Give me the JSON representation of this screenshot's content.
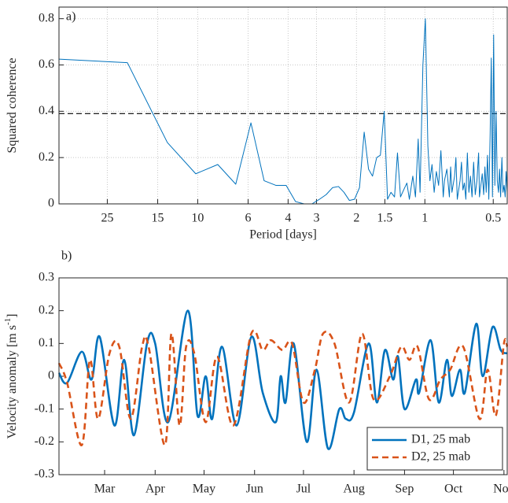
{
  "chart_data": [
    {
      "type": "line",
      "title": "a)",
      "xlabel": "Period [days]",
      "ylabel": "Squared coherence",
      "xscale": "log",
      "grid": true,
      "xlim": [
        40.8,
        0.434
      ],
      "xticks": [
        25,
        15,
        10,
        6,
        4,
        3,
        2,
        1.5,
        1,
        0.5
      ],
      "ylim": [
        0,
        0.85
      ],
      "yticks": [
        0,
        0.2,
        0.4,
        0.6,
        0.8
      ],
      "hline": 0.39,
      "x": [
        40.8,
        20.4,
        13.6,
        10.2,
        8.16,
        6.8,
        5.83,
        5.1,
        4.53,
        4.08,
        3.71,
        3.4,
        3.14,
        2.91,
        2.72,
        2.55,
        2.4,
        2.27,
        2.15,
        2.04,
        1.94,
        1.85,
        1.77,
        1.7,
        1.63,
        1.57,
        1.51,
        1.46,
        1.41,
        1.36,
        1.32,
        1.28,
        1.24,
        1.2,
        1.17,
        1.13,
        1.1,
        1.07,
        1.05,
        1.02,
        0.995,
        0.97,
        0.95,
        0.93,
        0.91,
        0.89,
        0.87,
        0.85,
        0.83,
        0.82,
        0.8,
        0.78,
        0.77,
        0.76,
        0.74,
        0.73,
        0.72,
        0.7,
        0.69,
        0.68,
        0.67,
        0.66,
        0.65,
        0.64,
        0.63,
        0.62,
        0.61,
        0.6,
        0.59,
        0.58,
        0.575,
        0.567,
        0.559,
        0.551,
        0.544,
        0.537,
        0.53,
        0.523,
        0.516,
        0.51,
        0.504,
        0.498,
        0.492,
        0.486,
        0.48,
        0.474,
        0.469,
        0.464,
        0.458,
        0.453,
        0.448,
        0.443,
        0.439,
        0.434
      ],
      "series": [
        {
          "color": "#0072bd",
          "linestyle": "solid",
          "values": [
            0.625,
            0.61,
            0.265,
            0.13,
            0.17,
            0.085,
            0.35,
            0.1,
            0.08,
            0.08,
            0.01,
            0.0,
            0.0,
            0.02,
            0.04,
            0.07,
            0.075,
            0.05,
            0.015,
            0.02,
            0.07,
            0.31,
            0.15,
            0.12,
            0.2,
            0.21,
            0.4,
            0.02,
            0.05,
            0.03,
            0.22,
            0.03,
            0.06,
            0.09,
            0.02,
            0.12,
            0.03,
            0.28,
            0.05,
            0.6,
            0.8,
            0.25,
            0.1,
            0.17,
            0.05,
            0.14,
            0.08,
            0.23,
            0.03,
            0.1,
            0.15,
            0.03,
            0.16,
            0.05,
            0.12,
            0.2,
            0.02,
            0.1,
            0.18,
            0.06,
            0.09,
            0.02,
            0.22,
            0.05,
            0.12,
            0.03,
            0.18,
            0.04,
            0.1,
            0.22,
            0.03,
            0.08,
            0.13,
            0.04,
            0.16,
            0.05,
            0.21,
            0.02,
            0.3,
            0.63,
            0.03,
            0.73,
            0.08,
            0.4,
            0.1,
            0.05,
            0.15,
            0.03,
            0.2,
            0.05,
            0.08,
            0.03,
            0.14,
            0.05
          ]
        }
      ]
    },
    {
      "type": "line",
      "title": "b)",
      "ylabel": "Velocity anomaly [m s",
      "ylabel_sup": "-1",
      "ylabel_end": "]",
      "grid": false,
      "smooth": true,
      "legend": "lower right",
      "xlim": [
        32,
        307
      ],
      "xticks": [
        {
          "value": 60,
          "label": "Mar"
        },
        {
          "value": 91,
          "label": "Apr"
        },
        {
          "value": 121,
          "label": "May"
        },
        {
          "value": 152,
          "label": "Jun"
        },
        {
          "value": 182,
          "label": "Jul"
        },
        {
          "value": 213,
          "label": "Aug"
        },
        {
          "value": 244,
          "label": "Sep"
        },
        {
          "value": 274,
          "label": "Oct"
        },
        {
          "value": 305,
          "label": "Nov"
        }
      ],
      "ylim": [
        -0.3,
        0.3
      ],
      "yticks": [
        -0.3,
        -0.2,
        -0.1,
        0,
        0.1,
        0.2,
        0.3
      ],
      "series": [
        {
          "name": "D1, 25 mab",
          "color": "#0072bd",
          "linestyle": "solid",
          "x": [
            32,
            37,
            46,
            52,
            57,
            66,
            72,
            78,
            86,
            91,
            99,
            111,
            117,
            122,
            126,
            132,
            141,
            150,
            157,
            165,
            168,
            171,
            176,
            184,
            190,
            197,
            204,
            208,
            213,
            222,
            227,
            232,
            237,
            240,
            244,
            251,
            253,
            260,
            265,
            270,
            273,
            278,
            281,
            288,
            292,
            298,
            303,
            307
          ],
          "values": [
            0.01,
            -0.02,
            0.075,
            -0.01,
            0.12,
            -0.15,
            0.05,
            -0.18,
            0.1,
            0.1,
            -0.14,
            0.2,
            -0.12,
            0.0,
            -0.13,
            0.09,
            -0.15,
            0.12,
            -0.05,
            -0.14,
            0.0,
            -0.08,
            0.1,
            -0.2,
            0.02,
            -0.22,
            -0.1,
            -0.13,
            -0.11,
            0.1,
            -0.08,
            0.08,
            -0.01,
            0.06,
            -0.1,
            -0.01,
            -0.05,
            0.11,
            -0.08,
            0.05,
            -0.06,
            0.02,
            -0.05,
            0.16,
            0.0,
            0.15,
            0.08,
            0.07
          ]
        },
        {
          "name": "D2, 25 mab",
          "color": "#d95319",
          "linestyle": "dashed",
          "x": [
            32,
            37,
            46,
            51,
            56,
            63,
            69,
            76,
            83,
            87,
            97,
            101,
            106,
            110,
            115,
            122,
            129,
            139,
            150,
            157,
            162,
            169,
            175,
            182,
            189,
            194,
            201,
            210,
            218,
            225,
            235,
            242,
            247,
            252,
            259,
            266,
            272,
            280,
            290,
            295,
            300,
            305,
            307
          ],
          "values": [
            0.04,
            -0.02,
            -0.21,
            0.05,
            -0.13,
            0.07,
            0.09,
            -0.13,
            0.09,
            0.09,
            -0.21,
            0.13,
            -0.15,
            0.09,
            0.07,
            -0.14,
            0.06,
            -0.15,
            0.13,
            0.08,
            0.11,
            0.08,
            0.1,
            -0.08,
            0.02,
            0.13,
            0.1,
            -0.08,
            0.13,
            -0.07,
            0.0,
            0.09,
            0.05,
            0.09,
            -0.07,
            -0.01,
            0.02,
            0.09,
            -0.13,
            0.02,
            -0.12,
            0.1,
            0.09
          ]
        }
      ]
    }
  ]
}
